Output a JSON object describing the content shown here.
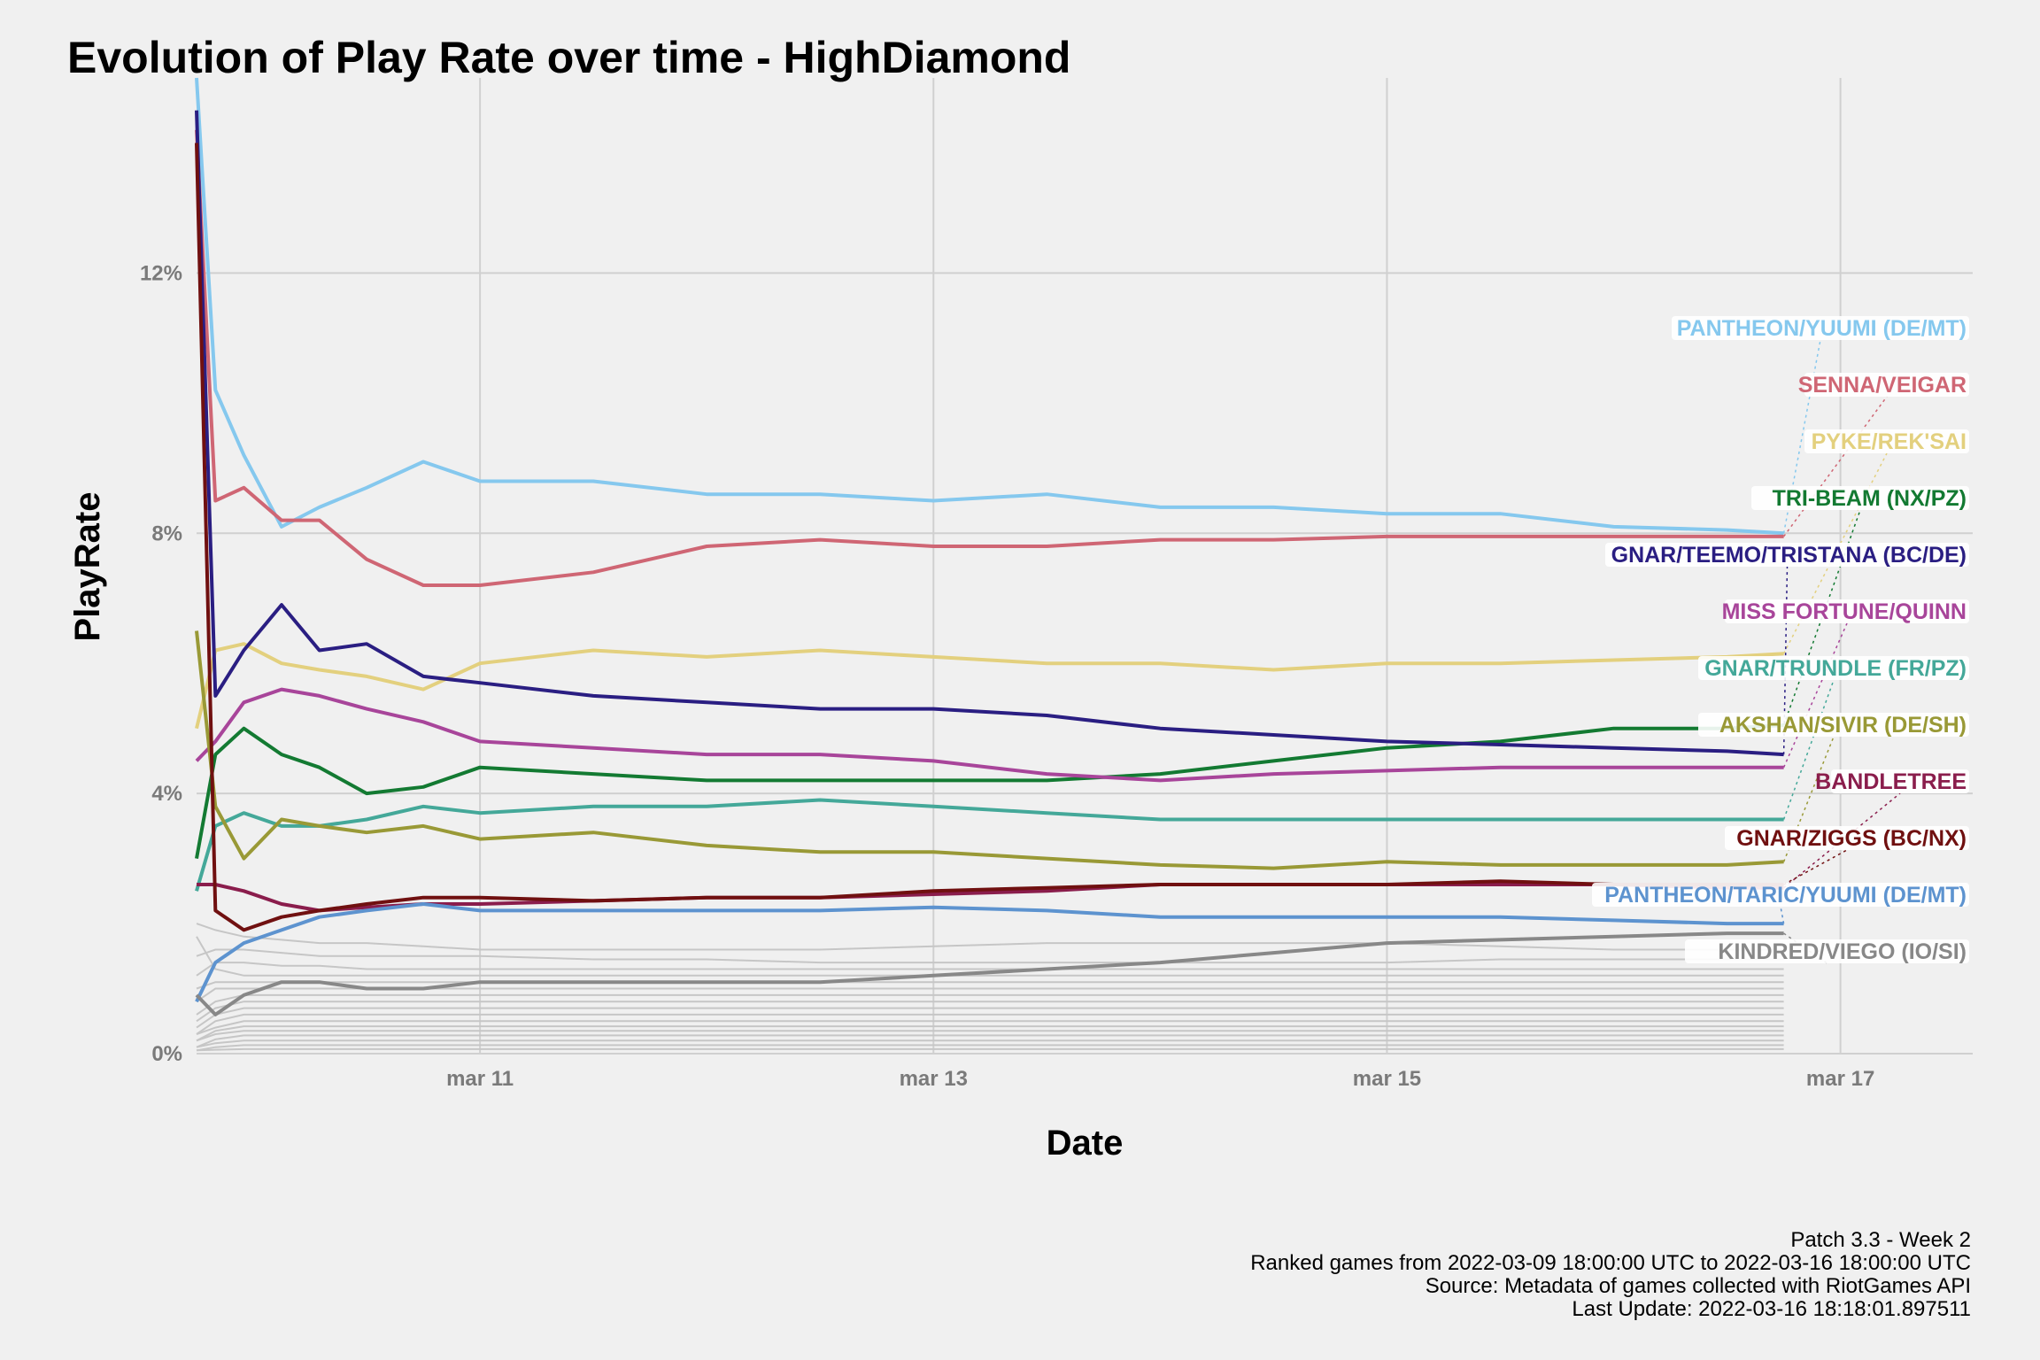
{
  "chart_data": {
    "type": "line",
    "title": "Evolution of Play Rate over time - HighDiamond",
    "xlabel": "Date",
    "ylabel": "PlayRate",
    "x_range": [
      "2022-03-09T18:00",
      "2022-03-17T14:00"
    ],
    "ylim": [
      0,
      15
    ],
    "x_ticks": [
      {
        "date": "2022-03-11T00:00",
        "label": "mar 11"
      },
      {
        "date": "2022-03-13T00:00",
        "label": "mar 13"
      },
      {
        "date": "2022-03-15T00:00",
        "label": "mar 15"
      },
      {
        "date": "2022-03-17T00:00",
        "label": "mar 17"
      }
    ],
    "y_ticks": [
      {
        "value": 0,
        "label": "0%"
      },
      {
        "value": 4,
        "label": "4%"
      },
      {
        "value": 8,
        "label": "8%"
      },
      {
        "value": 12,
        "label": "12%"
      }
    ],
    "grid": true,
    "legend": "labels at right end",
    "x": [
      "2022-03-09T18:00",
      "2022-03-09T20:00",
      "2022-03-09T23:00",
      "2022-03-10T03:00",
      "2022-03-10T07:00",
      "2022-03-10T12:00",
      "2022-03-10T18:00",
      "2022-03-11T00:00",
      "2022-03-11T12:00",
      "2022-03-12T00:00",
      "2022-03-12T12:00",
      "2022-03-13T00:00",
      "2022-03-13T12:00",
      "2022-03-14T00:00",
      "2022-03-14T12:00",
      "2022-03-15T00:00",
      "2022-03-15T12:00",
      "2022-03-16T00:00",
      "2022-03-16T12:00",
      "2022-03-16T18:00"
    ],
    "series": [
      {
        "name": "PANTHEON/YUUMI (DE/MT)",
        "color": "#85c8ee",
        "values": [
          15.0,
          10.2,
          9.2,
          8.1,
          8.4,
          8.7,
          9.1,
          8.8,
          8.8,
          8.6,
          8.6,
          8.5,
          8.6,
          8.4,
          8.4,
          8.3,
          8.3,
          8.1,
          8.05,
          8.0
        ]
      },
      {
        "name": "SENNA/VEIGAR",
        "color": "#cf6674",
        "values": [
          14.2,
          8.5,
          8.7,
          8.2,
          8.2,
          7.6,
          7.2,
          7.2,
          7.4,
          7.8,
          7.9,
          7.8,
          7.8,
          7.9,
          7.9,
          7.95,
          7.95,
          7.95,
          7.95,
          7.95
        ]
      },
      {
        "name": "PYKE/REK'SAI",
        "color": "#e3d07e",
        "values": [
          5.0,
          6.2,
          6.3,
          6.0,
          5.9,
          5.8,
          5.6,
          6.0,
          6.2,
          6.1,
          6.2,
          6.1,
          6.0,
          6.0,
          5.9,
          6.0,
          6.0,
          6.05,
          6.1,
          6.15
        ]
      },
      {
        "name": "TRI-BEAM (NX/PZ)",
        "color": "#137a32",
        "values": [
          3.0,
          4.6,
          5.0,
          4.6,
          4.4,
          4.0,
          4.1,
          4.4,
          4.3,
          4.2,
          4.2,
          4.2,
          4.2,
          4.3,
          4.5,
          4.7,
          4.8,
          5.0,
          5.0,
          5.05
        ]
      },
      {
        "name": "GNAR/TEEMO/TRISTANA (BC/DE)",
        "color": "#2a1e82",
        "values": [
          14.5,
          5.5,
          6.2,
          6.9,
          6.2,
          6.3,
          5.8,
          5.7,
          5.5,
          5.4,
          5.3,
          5.3,
          5.2,
          5.0,
          4.9,
          4.8,
          4.75,
          4.7,
          4.65,
          4.6
        ]
      },
      {
        "name": "MISS FORTUNE/QUINN",
        "color": "#a8459a",
        "values": [
          4.5,
          4.8,
          5.4,
          5.6,
          5.5,
          5.3,
          5.1,
          4.8,
          4.7,
          4.6,
          4.6,
          4.5,
          4.3,
          4.2,
          4.3,
          4.35,
          4.4,
          4.4,
          4.4,
          4.4
        ]
      },
      {
        "name": "GNAR/TRUNDLE (FR/PZ)",
        "color": "#44a899",
        "values": [
          2.5,
          3.5,
          3.7,
          3.5,
          3.5,
          3.6,
          3.8,
          3.7,
          3.8,
          3.8,
          3.9,
          3.8,
          3.7,
          3.6,
          3.6,
          3.6,
          3.6,
          3.6,
          3.6,
          3.6
        ]
      },
      {
        "name": "AKSHAN/SIVIR (DE/SH)",
        "color": "#999936",
        "values": [
          6.5,
          3.8,
          3.0,
          3.6,
          3.5,
          3.4,
          3.5,
          3.3,
          3.4,
          3.2,
          3.1,
          3.1,
          3.0,
          2.9,
          2.85,
          2.95,
          2.9,
          2.9,
          2.9,
          2.95
        ]
      },
      {
        "name": "BANDLETREE",
        "color": "#8a1d4c",
        "values": [
          2.6,
          2.6,
          2.5,
          2.3,
          2.2,
          2.25,
          2.3,
          2.3,
          2.35,
          2.4,
          2.4,
          2.45,
          2.5,
          2.6,
          2.6,
          2.6,
          2.6,
          2.6,
          2.55,
          2.55
        ]
      },
      {
        "name": "GNAR/ZIGGS (BC/NX)",
        "color": "#701010",
        "values": [
          14.0,
          2.2,
          1.9,
          2.1,
          2.2,
          2.3,
          2.4,
          2.4,
          2.35,
          2.4,
          2.4,
          2.5,
          2.55,
          2.6,
          2.6,
          2.6,
          2.65,
          2.6,
          2.6,
          2.6
        ]
      },
      {
        "name": "PANTHEON/TARIC/YUUMI (DE/MT)",
        "color": "#5d93cf",
        "values": [
          0.8,
          1.4,
          1.7,
          1.9,
          2.1,
          2.2,
          2.3,
          2.2,
          2.2,
          2.2,
          2.2,
          2.25,
          2.2,
          2.1,
          2.1,
          2.1,
          2.1,
          2.05,
          2.0,
          2.0
        ]
      },
      {
        "name": "KINDRED/VIEGO (IO/SI)",
        "color": "#888888",
        "values": [
          0.9,
          0.6,
          0.9,
          1.1,
          1.1,
          1.0,
          1.0,
          1.1,
          1.1,
          1.1,
          1.1,
          1.2,
          1.3,
          1.4,
          1.55,
          1.7,
          1.75,
          1.8,
          1.85,
          1.85
        ]
      }
    ],
    "background_series_color": "#c6c6c6",
    "background_series": [
      [
        2.0,
        1.9,
        1.8,
        1.75,
        1.7,
        1.7,
        1.65,
        1.6,
        1.6,
        1.6,
        1.6,
        1.65,
        1.7,
        1.7,
        1.7,
        1.7,
        1.65,
        1.6,
        1.6,
        1.6
      ],
      [
        1.5,
        1.6,
        1.6,
        1.55,
        1.5,
        1.5,
        1.5,
        1.5,
        1.45,
        1.45,
        1.4,
        1.4,
        1.4,
        1.4,
        1.4,
        1.4,
        1.45,
        1.45,
        1.45,
        1.45
      ],
      [
        1.2,
        1.4,
        1.4,
        1.35,
        1.35,
        1.3,
        1.3,
        1.3,
        1.3,
        1.3,
        1.3,
        1.3,
        1.3,
        1.3,
        1.3,
        1.3,
        1.3,
        1.3,
        1.3,
        1.3
      ],
      [
        1.8,
        1.3,
        1.2,
        1.2,
        1.2,
        1.2,
        1.2,
        1.2,
        1.2,
        1.2,
        1.2,
        1.2,
        1.2,
        1.2,
        1.2,
        1.2,
        1.2,
        1.2,
        1.2,
        1.2
      ],
      [
        1.0,
        1.1,
        1.1,
        1.1,
        1.1,
        1.1,
        1.1,
        1.1,
        1.1,
        1.1,
        1.1,
        1.1,
        1.1,
        1.1,
        1.1,
        1.1,
        1.1,
        1.1,
        1.1,
        1.1
      ],
      [
        0.8,
        1.0,
        1.0,
        1.0,
        1.0,
        1.0,
        1.0,
        1.0,
        1.0,
        1.0,
        1.0,
        1.0,
        1.0,
        1.0,
        1.0,
        1.0,
        1.0,
        1.0,
        1.0,
        1.0
      ],
      [
        0.6,
        0.8,
        0.9,
        0.9,
        0.9,
        0.9,
        0.9,
        0.9,
        0.9,
        0.9,
        0.9,
        0.9,
        0.9,
        0.9,
        0.9,
        0.9,
        0.9,
        0.9,
        0.9,
        0.9
      ],
      [
        0.5,
        0.7,
        0.8,
        0.8,
        0.8,
        0.8,
        0.8,
        0.8,
        0.8,
        0.8,
        0.8,
        0.8,
        0.8,
        0.8,
        0.8,
        0.8,
        0.8,
        0.8,
        0.8,
        0.8
      ],
      [
        0.4,
        0.6,
        0.7,
        0.7,
        0.7,
        0.7,
        0.7,
        0.7,
        0.7,
        0.7,
        0.7,
        0.7,
        0.7,
        0.7,
        0.7,
        0.7,
        0.7,
        0.7,
        0.7,
        0.7
      ],
      [
        0.3,
        0.5,
        0.6,
        0.6,
        0.6,
        0.6,
        0.6,
        0.6,
        0.6,
        0.6,
        0.6,
        0.6,
        0.6,
        0.6,
        0.6,
        0.6,
        0.6,
        0.6,
        0.6,
        0.6
      ],
      [
        0.3,
        0.4,
        0.5,
        0.5,
        0.5,
        0.5,
        0.5,
        0.5,
        0.5,
        0.5,
        0.5,
        0.5,
        0.5,
        0.5,
        0.5,
        0.5,
        0.5,
        0.5,
        0.5,
        0.5
      ],
      [
        0.2,
        0.35,
        0.42,
        0.42,
        0.42,
        0.42,
        0.42,
        0.42,
        0.42,
        0.42,
        0.42,
        0.42,
        0.42,
        0.42,
        0.42,
        0.42,
        0.42,
        0.42,
        0.42,
        0.42
      ],
      [
        0.2,
        0.3,
        0.35,
        0.35,
        0.35,
        0.35,
        0.35,
        0.35,
        0.35,
        0.35,
        0.35,
        0.35,
        0.35,
        0.35,
        0.35,
        0.35,
        0.35,
        0.35,
        0.35,
        0.35
      ],
      [
        0.1,
        0.22,
        0.28,
        0.28,
        0.28,
        0.28,
        0.28,
        0.28,
        0.28,
        0.28,
        0.28,
        0.28,
        0.28,
        0.28,
        0.28,
        0.28,
        0.28,
        0.28,
        0.28,
        0.28
      ],
      [
        0.1,
        0.16,
        0.2,
        0.2,
        0.2,
        0.2,
        0.2,
        0.2,
        0.2,
        0.2,
        0.2,
        0.2,
        0.2,
        0.2,
        0.2,
        0.2,
        0.2,
        0.2,
        0.2,
        0.2
      ],
      [
        0.05,
        0.1,
        0.13,
        0.13,
        0.13,
        0.13,
        0.13,
        0.13,
        0.13,
        0.13,
        0.13,
        0.13,
        0.13,
        0.13,
        0.13,
        0.13,
        0.13,
        0.13,
        0.13,
        0.13
      ],
      [
        0.05,
        0.06,
        0.07,
        0.07,
        0.07,
        0.07,
        0.07,
        0.07,
        0.07,
        0.07,
        0.07,
        0.07,
        0.07,
        0.07,
        0.07,
        0.07,
        0.07,
        0.07,
        0.07,
        0.07
      ]
    ],
    "caption": [
      "Patch 3.3 - Week 2",
      "Ranked games from 2022-03-09 18:00:00 UTC to 2022-03-16 18:00:00 UTC",
      "Source: Metadata of games collected with RiotGames API",
      "Last Update: 2022-03-16 18:18:01.897511"
    ]
  }
}
